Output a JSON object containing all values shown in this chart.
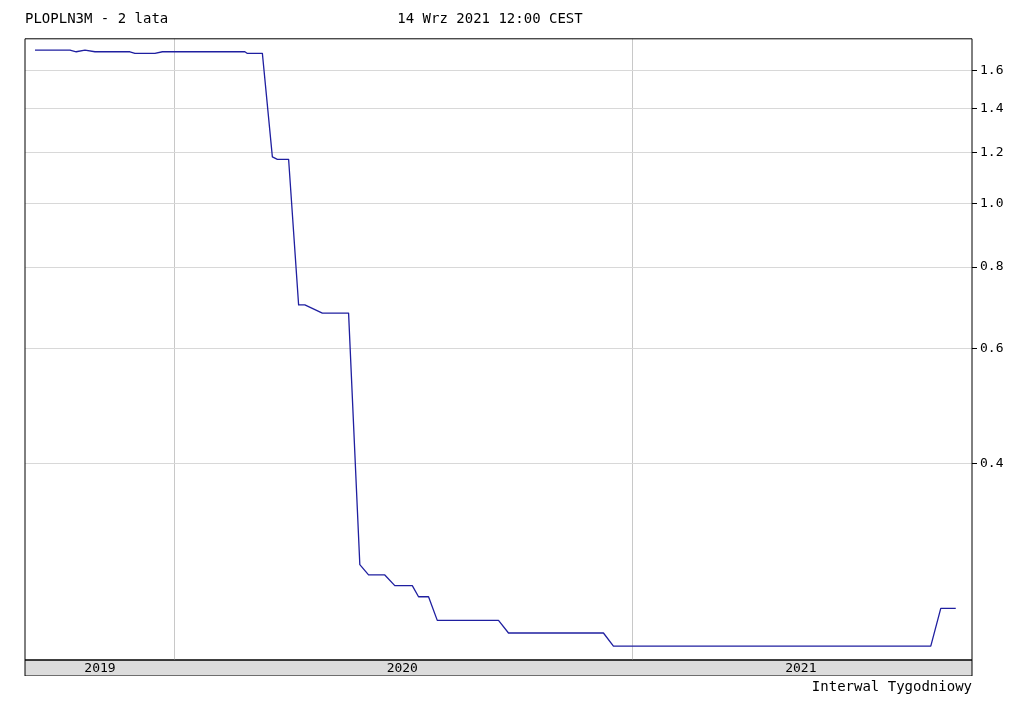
{
  "chart_data": {
    "type": "line",
    "title": "PLOPLN3M - 2 lata",
    "subtitle": "14 Wrz 2021 12:00 CEST",
    "annotations": [
      "Interwal Tygodniowy"
    ],
    "log": "y",
    "grid": true,
    "x": [
      "2019-09-11",
      "2019-10-09",
      "2019-10-14",
      "2019-10-21",
      "2019-10-29",
      "2019-11-26",
      "2019-11-30",
      "2019-12-16",
      "2019-12-22",
      "2020-02-26",
      "2020-02-28",
      "2020-03-11",
      "2020-03-19",
      "2020-03-23",
      "2020-04-01",
      "2020-04-09",
      "2020-04-14",
      "2020-04-28",
      "2020-05-19",
      "2020-05-28",
      "2020-06-04",
      "2020-06-17",
      "2020-06-25",
      "2020-07-09",
      "2020-07-14",
      "2020-07-22",
      "2020-07-29",
      "2020-09-16",
      "2020-09-24",
      "2020-12-09",
      "2020-12-17",
      "2021-08-28",
      "2021-09-05",
      "2021-09-17"
    ],
    "series": [
      {
        "color": "#1f1fa0",
        "values": [
          1.72,
          1.72,
          1.71,
          1.72,
          1.71,
          1.71,
          1.7,
          1.7,
          1.71,
          1.71,
          1.7,
          1.7,
          1.18,
          1.17,
          1.17,
          0.7,
          0.7,
          0.68,
          0.68,
          0.28,
          0.27,
          0.27,
          0.26,
          0.26,
          0.25,
          0.25,
          0.23,
          0.23,
          0.22,
          0.22,
          0.21,
          0.21,
          0.24,
          0.24
        ]
      }
    ],
    "xlim": [
      "2019-09-03",
      "2021-09-30"
    ],
    "xticks": [
      {
        "value": "2019-11-02",
        "label": "2019"
      },
      {
        "value": "2020-01-01",
        "label": null
      },
      {
        "value": "2020-07-01",
        "label": "2020"
      },
      {
        "value": "2021-01-01",
        "label": null
      },
      {
        "value": "2021-05-16",
        "label": "2021"
      }
    ],
    "ylim": [
      0.2,
      1.79
    ],
    "yticks": [
      0.4,
      0.6,
      0.8,
      {
        "value": 1,
        "label": "1.0"
      },
      1.2,
      1.4,
      1.6
    ]
  }
}
